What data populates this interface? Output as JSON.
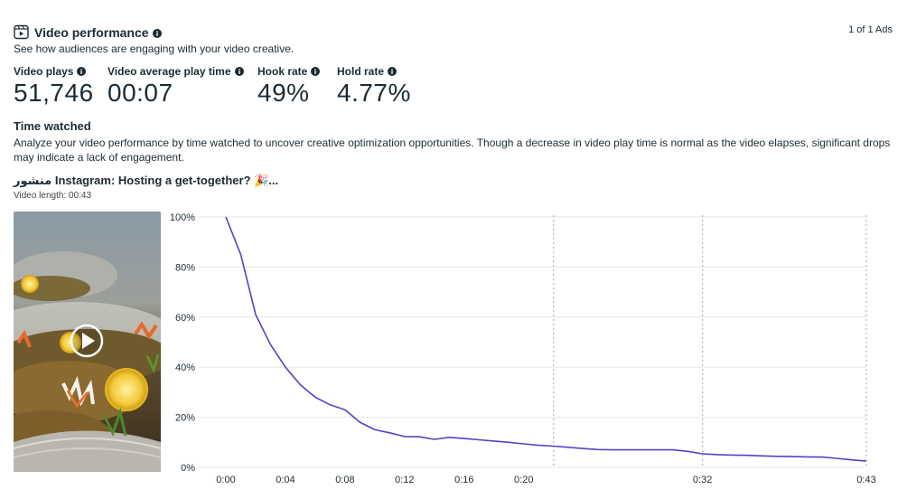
{
  "header": {
    "title": "Video performance",
    "subtitle": "See how audiences are engaging with your video creative.",
    "ads_count": "1 of 1 Ads"
  },
  "metrics": [
    {
      "label": "Video plays",
      "value": "51,746"
    },
    {
      "label": "Video average play time",
      "value": "00:07"
    },
    {
      "label": "Hook rate",
      "value": "49%"
    },
    {
      "label": "Hold rate",
      "value": "4.77%"
    }
  ],
  "time_watched": {
    "title": "Time watched",
    "description": "Analyze your video performance by time watched to uncover creative optimization opportunities. Though a decrease in video play time is normal as the video elapses, significant drops may indicate a lack of engagement."
  },
  "video": {
    "title": "منشور Instagram: Hosting a get-together? 🎉...",
    "length": "Video length: 00:43"
  },
  "colors": {
    "line": "#5b3fc4",
    "grid": "#e4e6eb",
    "dotted": "#b0b3b8",
    "text": "#1c2b33"
  },
  "chart_data": {
    "type": "line",
    "xlabel": "",
    "ylabel": "",
    "xlim": [
      0,
      43
    ],
    "ylim": [
      0,
      100
    ],
    "y_ticks": [
      {
        "value": 0,
        "label": "0%"
      },
      {
        "value": 20,
        "label": "20%"
      },
      {
        "value": 40,
        "label": "40%"
      },
      {
        "value": 60,
        "label": "60%"
      },
      {
        "value": 80,
        "label": "80%"
      },
      {
        "value": 100,
        "label": "100%"
      }
    ],
    "x_ticks": [
      {
        "value": 0,
        "label": "0:00"
      },
      {
        "value": 4,
        "label": "0:04"
      },
      {
        "value": 8,
        "label": "0:08"
      },
      {
        "value": 12,
        "label": "0:12"
      },
      {
        "value": 16,
        "label": "0:16"
      },
      {
        "value": 20,
        "label": "0:20"
      },
      {
        "value": 32,
        "label": "0:32"
      },
      {
        "value": 43,
        "label": "0:43"
      }
    ],
    "dotted_markers": [
      22,
      32,
      43
    ],
    "grid": true,
    "series": [
      {
        "x": [
          0,
          1,
          2,
          3,
          4,
          5,
          6,
          7,
          8,
          9,
          10,
          11,
          12,
          13,
          14,
          15,
          16,
          17,
          18,
          19,
          20,
          21,
          22,
          23,
          24,
          25,
          26,
          27,
          28,
          29,
          30,
          31,
          32,
          33,
          34,
          35,
          36,
          37,
          38,
          39,
          40,
          41,
          42,
          43
        ],
        "y": [
          100,
          85,
          61,
          49,
          40,
          33,
          28,
          25,
          23,
          18,
          15,
          13.8,
          12.3,
          12.2,
          11.2,
          12,
          11.5,
          11,
          10.5,
          10,
          9.4,
          8.8,
          8.5,
          8,
          7.5,
          7.1,
          7,
          7,
          7,
          7,
          7,
          6.4,
          5.4,
          5.1,
          4.9,
          4.8,
          4.6,
          4.4,
          4.3,
          4.2,
          4.1,
          3.6,
          3.0,
          2.5
        ]
      }
    ]
  }
}
